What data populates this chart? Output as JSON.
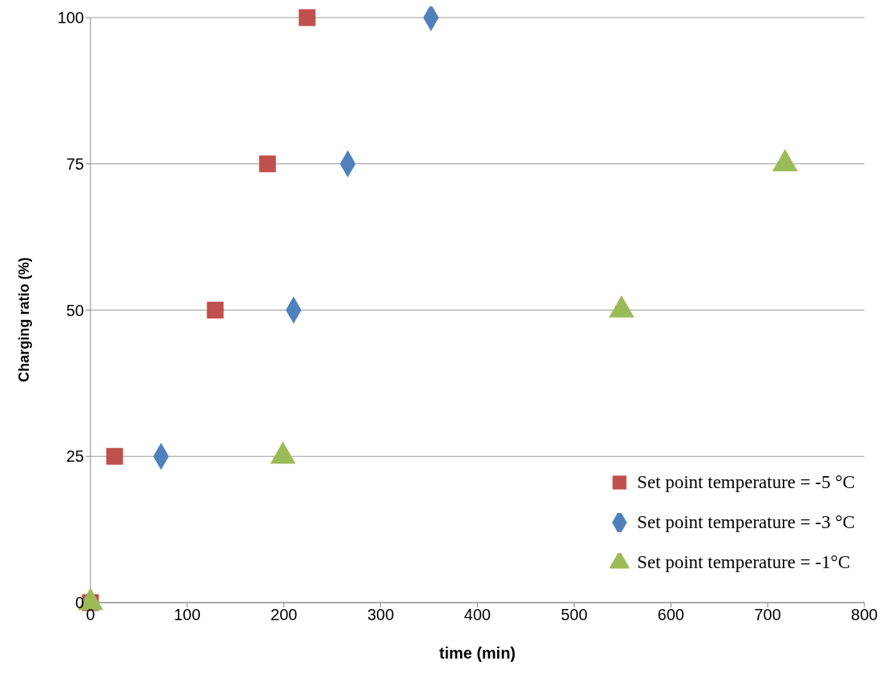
{
  "chart_data": {
    "type": "scatter",
    "xlabel": "time (min)",
    "ylabel": "Charging ratio (%)",
    "xlim": [
      0,
      800
    ],
    "xticks": [
      0,
      100,
      200,
      300,
      400,
      500,
      600,
      700,
      800
    ],
    "ylim": [
      0,
      100
    ],
    "yticks": [
      0,
      25,
      50,
      75,
      100
    ],
    "grid": "y",
    "legend": "bottom right",
    "series": [
      {
        "name": "Set point temperature = -5 °C",
        "color": "#c0504d",
        "marker": "square",
        "x": [
          0,
          25,
          129,
          183,
          224
        ],
        "values": [
          0,
          25,
          50,
          75,
          100
        ]
      },
      {
        "name": "Set point temperature = -3 °C",
        "color": "#4f81bd",
        "marker": "diamond",
        "x": [
          73,
          210,
          266,
          352
        ],
        "values": [
          25,
          50,
          75,
          100
        ]
      },
      {
        "name": "Set point temperature = -1°C",
        "color": "#9bbb59",
        "marker": "triangle",
        "x": [
          0,
          199,
          549,
          718
        ],
        "values": [
          0,
          25,
          50,
          75
        ]
      }
    ]
  }
}
